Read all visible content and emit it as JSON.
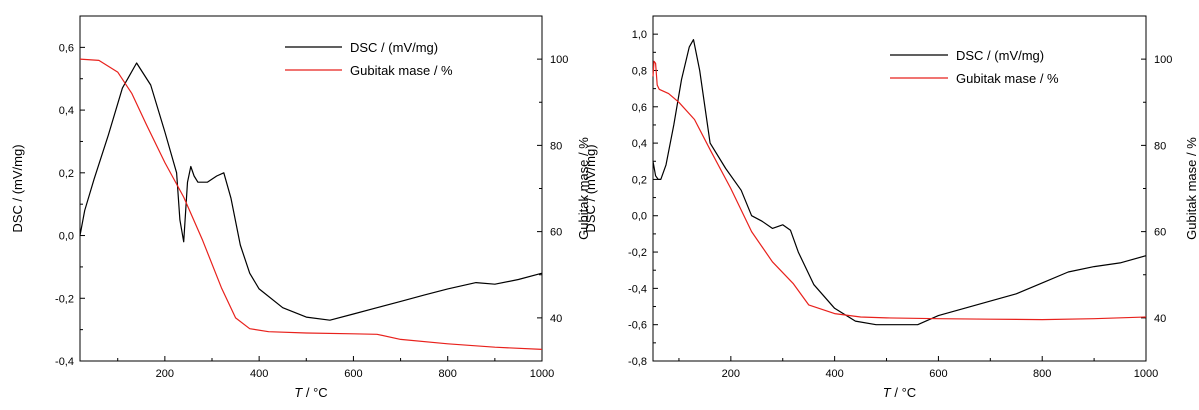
{
  "chart_data": [
    {
      "type": "line",
      "xlabel_var": "T",
      "xlabel_unit": " / °C",
      "ylabel": "DSC / (mV/mg)",
      "y2label": "Gubitak mase / %",
      "xlim": [
        20,
        1000
      ],
      "ylim": [
        -0.4,
        0.7
      ],
      "y2lim": [
        30,
        110
      ],
      "x_ticks": [
        "200",
        "400",
        "600",
        "800",
        "1000"
      ],
      "y_ticks": [
        "-0,4",
        "-0,2",
        "0,0",
        "0,2",
        "0,4",
        "0,6"
      ],
      "y2_ticks": [
        "40",
        "60",
        "80",
        "100"
      ],
      "legend_position": "top-right",
      "series": [
        {
          "name": "DSC / (mV/mg)",
          "color": "#000000",
          "axis": "left",
          "x": [
            20,
            30,
            50,
            80,
            110,
            140,
            170,
            200,
            225,
            232,
            240,
            248,
            255,
            262,
            270,
            290,
            310,
            325,
            340,
            360,
            380,
            400,
            450,
            500,
            550,
            600,
            650,
            700,
            750,
            800,
            860,
            900,
            950,
            1000
          ],
          "y": [
            0.0,
            0.08,
            0.18,
            0.32,
            0.47,
            0.55,
            0.48,
            0.33,
            0.2,
            0.05,
            -0.02,
            0.17,
            0.22,
            0.19,
            0.17,
            0.17,
            0.19,
            0.2,
            0.12,
            -0.03,
            -0.12,
            -0.17,
            -0.23,
            -0.26,
            -0.27,
            -0.25,
            -0.23,
            -0.21,
            -0.19,
            -0.17,
            -0.15,
            -0.155,
            -0.14,
            -0.12
          ]
        },
        {
          "name": "Gubitak mase / %",
          "color": "#e8211c",
          "axis": "right",
          "x": [
            20,
            60,
            100,
            130,
            160,
            200,
            240,
            280,
            320,
            350,
            380,
            420,
            500,
            600,
            650,
            700,
            800,
            900,
            1000
          ],
          "y": [
            100,
            99.7,
            97,
            92,
            85,
            76,
            68,
            58,
            47,
            40,
            37.5,
            36.8,
            36.5,
            36.3,
            36.2,
            35,
            34,
            33.2,
            32.7
          ]
        }
      ]
    },
    {
      "type": "line",
      "xlabel_var": "T",
      "xlabel_unit": " / °C",
      "ylabel": "DSC / (mV/mg)",
      "y2label": "Gubitak mase / %",
      "xlim": [
        50,
        1000
      ],
      "ylim": [
        -0.8,
        1.1
      ],
      "y2lim": [
        30,
        110
      ],
      "x_ticks": [
        "200",
        "400",
        "600",
        "800",
        "1000"
      ],
      "y_ticks": [
        "-0,8",
        "-0,6",
        "-0,4",
        "-0,2",
        "0,0",
        "0,2",
        "0,4",
        "0,6",
        "0,8",
        "1,0"
      ],
      "y2_ticks": [
        "40",
        "60",
        "80",
        "100"
      ],
      "legend_position": "top-right",
      "series": [
        {
          "name": "DSC / (mV/mg)",
          "color": "#000000",
          "axis": "left",
          "x": [
            50,
            55,
            60,
            65,
            75,
            90,
            105,
            120,
            128,
            140,
            160,
            190,
            220,
            240,
            260,
            280,
            300,
            315,
            330,
            360,
            400,
            440,
            480,
            520,
            560,
            600,
            650,
            700,
            750,
            800,
            850,
            900,
            950,
            1000
          ],
          "y": [
            0.3,
            0.22,
            0.2,
            0.2,
            0.28,
            0.5,
            0.75,
            0.93,
            0.97,
            0.8,
            0.4,
            0.26,
            0.14,
            0.0,
            -0.03,
            -0.07,
            -0.05,
            -0.08,
            -0.2,
            -0.38,
            -0.51,
            -0.58,
            -0.6,
            -0.6,
            -0.6,
            -0.55,
            -0.51,
            -0.47,
            -0.43,
            -0.37,
            -0.31,
            -0.28,
            -0.26,
            -0.22
          ]
        },
        {
          "name": "Gubitak mase / %",
          "color": "#e8211c",
          "axis": "right",
          "x": [
            50,
            52,
            55,
            58,
            62,
            80,
            100,
            130,
            160,
            200,
            240,
            280,
            320,
            350,
            400,
            450,
            500,
            600,
            700,
            800,
            900,
            1000
          ],
          "y": [
            96,
            99.5,
            99,
            94,
            93,
            92,
            90,
            86,
            79,
            70,
            60,
            53,
            48,
            43,
            41,
            40.2,
            40,
            39.8,
            39.7,
            39.6,
            39.8,
            40.2
          ]
        }
      ]
    }
  ]
}
